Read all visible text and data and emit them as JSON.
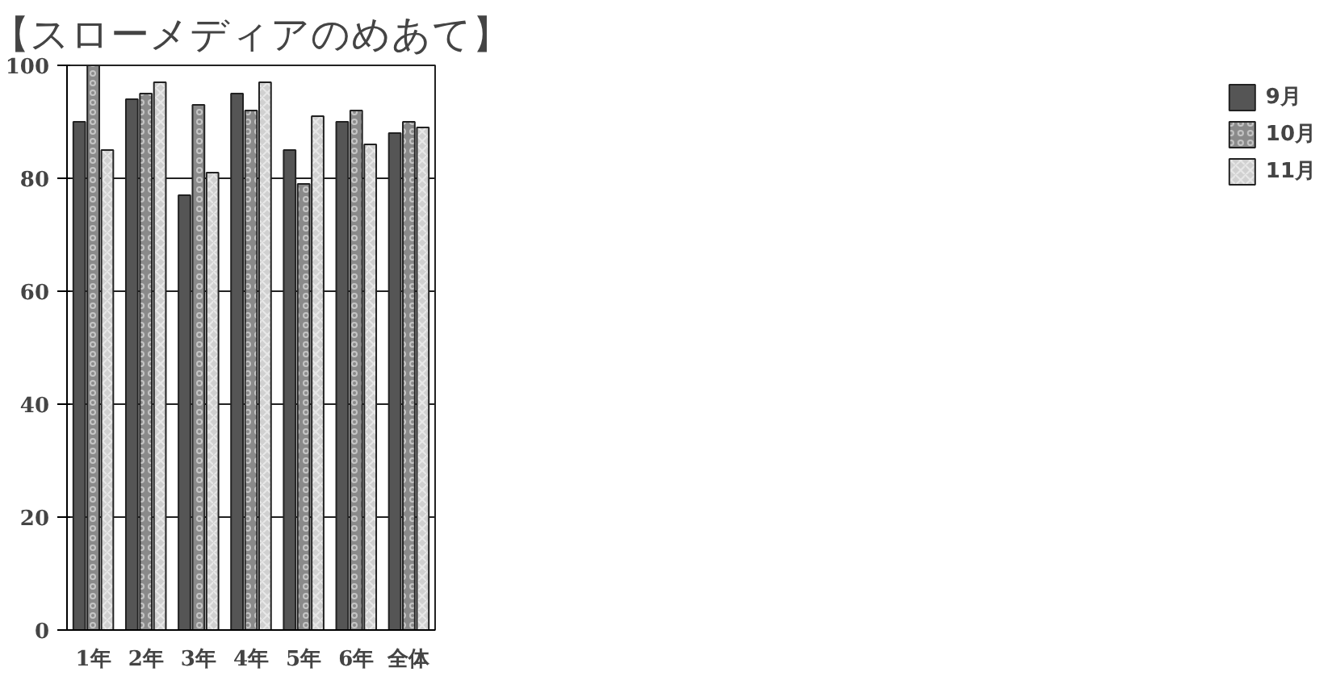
{
  "chart_data": {
    "type": "bar",
    "title": "【スローメディアのめあて】",
    "categories": [
      "1年",
      "2年",
      "3年",
      "4年",
      "5年",
      "6年",
      "全体"
    ],
    "series": [
      {
        "name": "9月",
        "color": "#555555",
        "values": [
          90,
          94,
          77,
          95,
          85,
          90,
          88
        ]
      },
      {
        "name": "10月",
        "color": "#8a8a8a",
        "values": [
          100,
          95,
          93,
          92,
          79,
          92,
          90
        ]
      },
      {
        "name": "11月",
        "color": "#d0d0d0",
        "values": [
          85,
          97,
          81,
          97,
          91,
          86,
          89
        ]
      }
    ],
    "ylim": [
      0,
      100
    ],
    "yticks": [
      0,
      20,
      40,
      60,
      80,
      100
    ],
    "grid": "y",
    "legend": "right"
  }
}
